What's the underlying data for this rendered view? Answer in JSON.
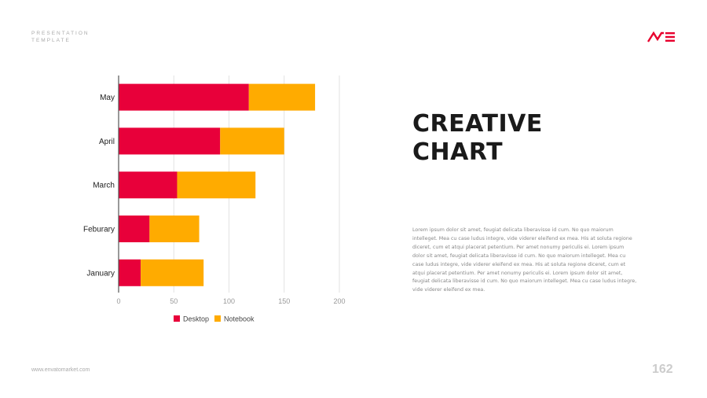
{
  "header": {
    "line1": "PRESENTATION",
    "line2": "TEMPLATE"
  },
  "logo": {
    "text": "ME",
    "color": "#e8002d"
  },
  "title": {
    "line1": "CREATIVE",
    "line2": "CHART"
  },
  "paragraph": [
    "Lorem ipsum dolor sit amet, feugiat delicata liberavisse id cum. No quo maiorum",
    "intelleget. Mea cu case ludus integre, vide viderer eleifend ex mea. His at soluta regione",
    "diceret, cum et atqui placerat petentium. Per amet nonumy periculis ei. Lorem ipsum",
    "dolor sit amet, feugiat delicata liberavisse id cum. No quo maiorum intelleget. Mea cu",
    "case ludus integre, vide viderer eleifend ex mea. His at soluta regione diceret, cum et",
    "atqui placerat petentium. Per amet nonumy periculis ei. Lorem ipsum dolor sit amet,",
    "feugiat delicata liberavisse id cum. No quo maiorum intelleget. Mea cu case ludus integre,",
    "vide viderer eleifend ex mea."
  ],
  "footer": {
    "url": "www.envatomarket.com",
    "page": "162"
  },
  "chart_data": {
    "type": "bar",
    "orientation": "horizontal",
    "stacked": true,
    "categories": [
      "May",
      "April",
      "March",
      "Feburary",
      "January"
    ],
    "series": [
      {
        "name": "Desktop",
        "color": "#e8003a",
        "values": [
          118,
          92,
          53,
          28,
          20
        ]
      },
      {
        "name": "Notebook",
        "color": "#ffab00",
        "values": [
          60,
          58,
          71,
          45,
          57
        ]
      }
    ],
    "xlim": [
      0,
      200
    ],
    "xticks": [
      "0",
      "50",
      "100",
      "150",
      "200"
    ],
    "grid": true,
    "legend": "bottom"
  }
}
